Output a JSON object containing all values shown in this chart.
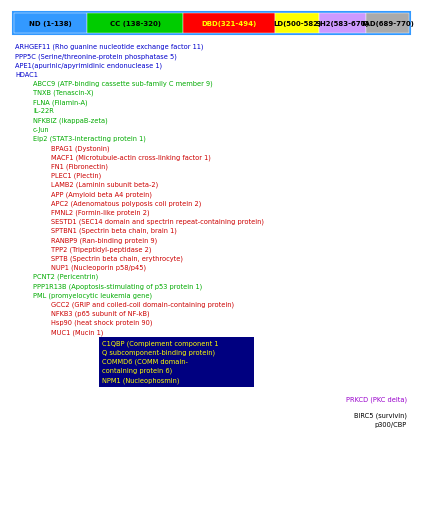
{
  "domain_bar": [
    {
      "label": "ND (1-138)",
      "color": "#3399ff",
      "text_color": "#000000"
    },
    {
      "label": "CC (138-320)",
      "color": "#00cc00",
      "text_color": "#000000"
    },
    {
      "label": "DBD(321-494)",
      "color": "#ff0000",
      "text_color": "#ffff00"
    },
    {
      "label": "LD(500-582)",
      "color": "#ffff00",
      "text_color": "#000000"
    },
    {
      "label": "SH2(583-670)",
      "color": "#cc99ff",
      "text_color": "#000000"
    },
    {
      "label": "TAD(689-770)",
      "color": "#aaaaaa",
      "text_color": "#000000"
    }
  ],
  "entries": [
    {
      "text": "ARHGEF11 (Rho guanine nucleotide exchange factor 11)",
      "indent": 0,
      "color": "#0000cc"
    },
    {
      "text": "PPP5C (Serine/threonine-protein phosphatase 5)",
      "indent": 0,
      "color": "#0000cc"
    },
    {
      "text": "APE1(apurinic/apyrimidinic endonuclease 1)",
      "indent": 0,
      "color": "#0000cc"
    },
    {
      "text": "HDAC1",
      "indent": 0,
      "color": "#0000cc"
    },
    {
      "text": "ABCC9 (ATP-binding cassette sub-family C member 9)",
      "indent": 1,
      "color": "#00aa00"
    },
    {
      "text": "TNXB (Tenascin-X)",
      "indent": 1,
      "color": "#00aa00"
    },
    {
      "text": "FLNA (Filamin-A)",
      "indent": 1,
      "color": "#00aa00"
    },
    {
      "text": "IL-22R",
      "indent": 1,
      "color": "#00aa00"
    },
    {
      "text": "NFKBIZ (IkappaB-zeta)",
      "indent": 1,
      "color": "#00aa00"
    },
    {
      "text": "c-Jun",
      "indent": 1,
      "color": "#00aa00"
    },
    {
      "text": "Elp2 (STAT3-interacting protein 1)",
      "indent": 1,
      "color": "#00aa00"
    },
    {
      "text": "BPAG1 (Dystonin)",
      "indent": 2,
      "color": "#cc0000"
    },
    {
      "text": "MACF1 (Microtubule-actin cross-linking factor 1)",
      "indent": 2,
      "color": "#cc0000"
    },
    {
      "text": "FN1 (Fibronectin)",
      "indent": 2,
      "color": "#cc0000"
    },
    {
      "text": "PLEC1 (Plectin)",
      "indent": 2,
      "color": "#cc0000"
    },
    {
      "text": "LAMB2 (Laminin subunit beta-2)",
      "indent": 2,
      "color": "#cc0000"
    },
    {
      "text": "APP (Amyloid beta A4 protein)",
      "indent": 2,
      "color": "#cc0000"
    },
    {
      "text": "APC2 (Adenomatous polyposis coli protein 2)",
      "indent": 2,
      "color": "#cc0000"
    },
    {
      "text": "FMNL2 (Formin-like protein 2)",
      "indent": 2,
      "color": "#cc0000"
    },
    {
      "text": "SESTD1 (SEC14 domain and spectrin repeat-containing protein)",
      "indent": 2,
      "color": "#cc0000"
    },
    {
      "text": "SPTBN1 (Spectrin beta chain, brain 1)",
      "indent": 2,
      "color": "#cc0000"
    },
    {
      "text": "RANBP9 (Ran-binding protein 9)",
      "indent": 2,
      "color": "#cc0000"
    },
    {
      "text": "TPP2 (Tripeptidyl-peptidase 2)",
      "indent": 2,
      "color": "#cc0000"
    },
    {
      "text": "SPTB (Spectrin beta chain, erythrocyte)",
      "indent": 2,
      "color": "#cc0000"
    },
    {
      "text": "NUP1 (Nucleoporin p58/p45)",
      "indent": 2,
      "color": "#cc0000"
    },
    {
      "text": "PCNT2 (Pericentrin)",
      "indent": 1,
      "color": "#00aa00"
    },
    {
      "text": "PPP1R13B (Apoptosis-stimulating of p53 protein 1)",
      "indent": 1,
      "color": "#00aa00"
    },
    {
      "text": "PML (promyelocytic leukemia gene)",
      "indent": 1,
      "color": "#00aa00"
    },
    {
      "text": "GCC2 (GRIP and coiled-coil domain-containing protein)",
      "indent": 2,
      "color": "#cc0000"
    },
    {
      "text": "NFKB3 (p65 subunit of NF-kB)",
      "indent": 2,
      "color": "#cc0000"
    },
    {
      "text": "Hsp90 (heat shock protein 90)",
      "indent": 2,
      "color": "#cc0000"
    },
    {
      "text": "MUC1 (Mucin 1)",
      "indent": 2,
      "color": "#cc0000"
    }
  ],
  "box_entries": [
    "C1QBP (Complement component 1",
    "Q subcomponent-binding protein)",
    "COMMD6 (COMM domain-",
    "containing protein 6)",
    "NPM1 (Nucleophosmin)"
  ],
  "box_color": "#000080",
  "box_text_color": "#ffff00",
  "prkcd_text": "PRKCD (PKC delta)",
  "prkcd_color": "#9900cc",
  "birc5_text": "BIRC5 (survivin)",
  "p300_text": "p300/CBP",
  "last_color": "#000000",
  "bg_color": "#ffffff",
  "font_size": 4.8,
  "indent_unit": 18
}
